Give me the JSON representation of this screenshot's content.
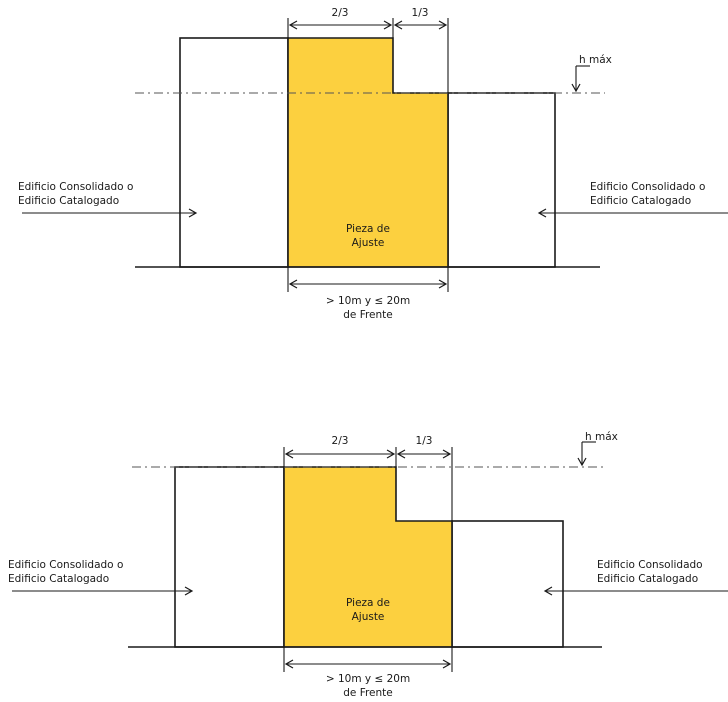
{
  "colors": {
    "adjustment_piece": "#fcd03f",
    "line": "#1a1a1a"
  },
  "diagrams": [
    {
      "id": "top",
      "left_building_label": [
        "Edificio Consolidado o",
        "Edificio Catalogado"
      ],
      "right_building_label": [
        "Edificio Consolidado o",
        "Edificio Catalogado"
      ],
      "piece_label": [
        "Pieza de",
        "Ajuste"
      ],
      "fraction_left": "2/3",
      "fraction_right": "1/3",
      "height_label": "h máx",
      "frontage_label": [
        "> 10m y ≤ 20m",
        "de Frente"
      ]
    },
    {
      "id": "bottom",
      "left_building_label": [
        "Edificio Consolidado o",
        "Edificio Catalogado"
      ],
      "right_building_label": [
        "Edificio Consolidado",
        "Edificio Catalogado"
      ],
      "piece_label": [
        "Pieza de",
        "Ajuste"
      ],
      "fraction_left": "2/3",
      "fraction_right": "1/3",
      "height_label": "h máx",
      "frontage_label": [
        "> 10m y ≤ 20m",
        "de Frente"
      ]
    }
  ]
}
